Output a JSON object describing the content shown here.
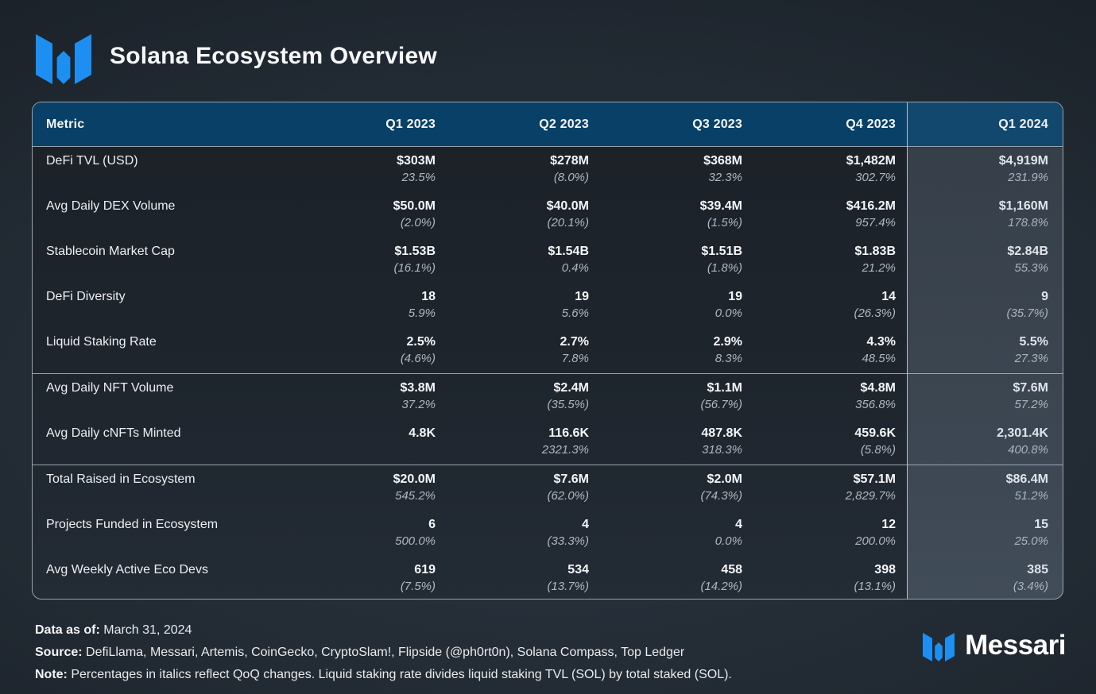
{
  "header": {
    "title": "Solana Ecosystem Overview"
  },
  "colors": {
    "accent_blue": "#1d8ff2",
    "header_row_blue": "#084067",
    "table_border": "#99a2ab",
    "highlight_column_bg": "#353e4a",
    "qoq_text": "#b0b7bd"
  },
  "chart_data": {
    "type": "table",
    "title": "Solana Ecosystem Overview",
    "columns": [
      "Metric",
      "Q1 2023",
      "Q2 2023",
      "Q3 2023",
      "Q4 2023",
      "Q1 2024"
    ],
    "highlighted_column": "Q1 2024",
    "sections": [
      {
        "rows": [
          {
            "metric": "DeFi TVL (USD)",
            "values": [
              "$303M",
              "$278M",
              "$368M",
              "$1,482M",
              "$4,919M"
            ],
            "qoq": [
              "23.5%",
              "(8.0%)",
              "32.3%",
              "302.7%",
              "231.9%"
            ]
          },
          {
            "metric": "Avg Daily DEX Volume",
            "values": [
              "$50.0M",
              "$40.0M",
              "$39.4M",
              "$416.2M",
              "$1,160M"
            ],
            "qoq": [
              "(2.0%)",
              "(20.1%)",
              "(1.5%)",
              "957.4%",
              "178.8%"
            ]
          },
          {
            "metric": "Stablecoin Market Cap",
            "values": [
              "$1.53B",
              "$1.54B",
              "$1.51B",
              "$1.83B",
              "$2.84B"
            ],
            "qoq": [
              "(16.1%)",
              "0.4%",
              "(1.8%)",
              "21.2%",
              "55.3%"
            ]
          },
          {
            "metric": "DeFi Diversity",
            "values": [
              "18",
              "19",
              "19",
              "14",
              "9"
            ],
            "qoq": [
              "5.9%",
              "5.6%",
              "0.0%",
              "(26.3%)",
              "(35.7%)"
            ]
          },
          {
            "metric": "Liquid Staking Rate",
            "values": [
              "2.5%",
              "2.7%",
              "2.9%",
              "4.3%",
              "5.5%"
            ],
            "qoq": [
              "(4.6%)",
              "7.8%",
              "8.3%",
              "48.5%",
              "27.3%"
            ]
          }
        ]
      },
      {
        "rows": [
          {
            "metric": "Avg Daily NFT Volume",
            "values": [
              "$3.8M",
              "$2.4M",
              "$1.1M",
              "$4.8M",
              "$7.6M"
            ],
            "qoq": [
              "37.2%",
              "(35.5%)",
              "(56.7%)",
              "356.8%",
              "57.2%"
            ]
          },
          {
            "metric": "Avg Daily cNFTs Minted",
            "values": [
              "4.8K",
              "116.6K",
              "487.8K",
              "459.6K",
              "2,301.4K"
            ],
            "qoq": [
              "",
              "2321.3%",
              "318.3%",
              "(5.8%)",
              "400.8%"
            ]
          }
        ]
      },
      {
        "rows": [
          {
            "metric": "Total Raised in Ecosystem",
            "values": [
              "$20.0M",
              "$7.6M",
              "$2.0M",
              "$57.1M",
              "$86.4M"
            ],
            "qoq": [
              "545.2%",
              "(62.0%)",
              "(74.3%)",
              "2,829.7%",
              "51.2%"
            ]
          },
          {
            "metric": "Projects Funded in Ecosystem",
            "values": [
              "6",
              "4",
              "4",
              "12",
              "15"
            ],
            "qoq": [
              "500.0%",
              "(33.3%)",
              "0.0%",
              "200.0%",
              "25.0%"
            ]
          },
          {
            "metric": "Avg Weekly Active Eco Devs",
            "values": [
              "619",
              "534",
              "458",
              "398",
              "385"
            ],
            "qoq": [
              "(7.5%)",
              "(13.7%)",
              "(14.2%)",
              "(13.1%)",
              "(3.4%)"
            ]
          }
        ]
      }
    ]
  },
  "footer": {
    "data_as_of_label": "Data as of:",
    "data_as_of": " March 31, 2024",
    "source_label": "Source:",
    "source": " DefiLlama, Messari, Artemis, CoinGecko, CryptoSlam!, Flipside (@ph0rt0n), Solana Compass, Top Ledger",
    "note_label": "Note:",
    "note": " Percentages in italics reflect QoQ changes. Liquid staking rate divides liquid staking TVL (SOL) by total staked (SOL).",
    "brand": "Messari"
  }
}
